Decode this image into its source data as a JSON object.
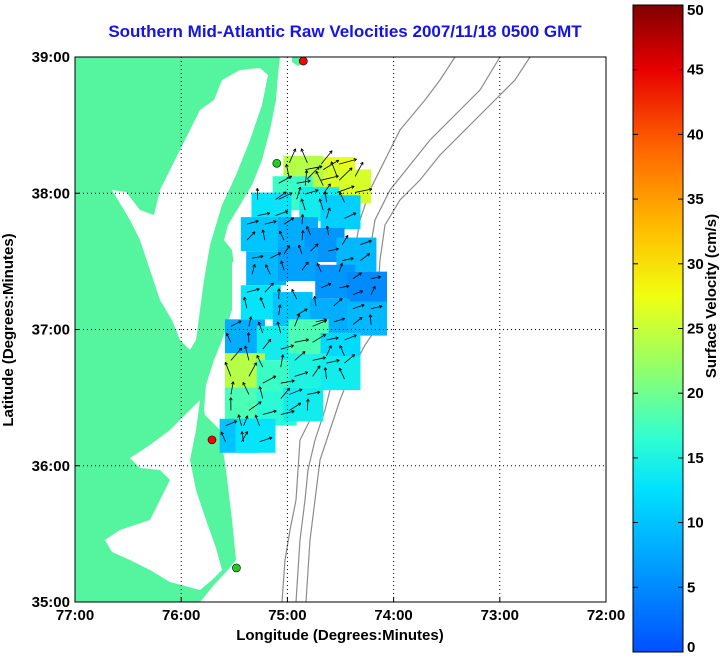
{
  "chart_data": {
    "type": "heatmap",
    "title": "Southern Mid-Atlantic Raw Velocities 2007/11/18 0500 GMT",
    "xlabel": "Longitude (Degrees:Minutes)",
    "ylabel": "Latitude (Degrees:Minutes)",
    "colorbar_label": "Surface Velocity (cm/s)",
    "xlim": [
      -77,
      -72
    ],
    "ylim": [
      35,
      39
    ],
    "x_ticks": [
      {
        "value": -77,
        "label": "77:00"
      },
      {
        "value": -76,
        "label": "76:00"
      },
      {
        "value": -75,
        "label": "75:00"
      },
      {
        "value": -74,
        "label": "74:00"
      },
      {
        "value": -73,
        "label": "73:00"
      },
      {
        "value": -72,
        "label": "72:00"
      }
    ],
    "y_ticks": [
      {
        "value": 35,
        "label": "35:00"
      },
      {
        "value": 36,
        "label": "36:00"
      },
      {
        "value": 37,
        "label": "37:00"
      },
      {
        "value": 38,
        "label": "38:00"
      },
      {
        "value": 39,
        "label": "39:00"
      }
    ],
    "colorbar_ticks": [
      {
        "value": 0,
        "label": "0"
      },
      {
        "value": 5,
        "label": "5"
      },
      {
        "value": 10,
        "label": "10"
      },
      {
        "value": 15,
        "label": "15"
      },
      {
        "value": 20,
        "label": "20"
      },
      {
        "value": 25,
        "label": "25"
      },
      {
        "value": 30,
        "label": "30"
      },
      {
        "value": 35,
        "label": "35"
      },
      {
        "value": 40,
        "label": "40"
      },
      {
        "value": 45,
        "label": "45"
      },
      {
        "value": 50,
        "label": "50"
      }
    ],
    "clim": [
      0,
      50
    ],
    "grid": true,
    "colormap": "jet",
    "land_color": "#55f5a0",
    "water_color": "#ffffff",
    "bathymetry_color": "#8c8c8c",
    "title_color": "#1414e6",
    "stations": [
      {
        "lon": -74.85,
        "lat": 38.97,
        "color": "#ff0000"
      },
      {
        "lon": -75.1,
        "lat": 38.22,
        "color": "#22cc22"
      },
      {
        "lon": -75.71,
        "lat": 36.19,
        "color": "#ff0000"
      },
      {
        "lon": -75.48,
        "lat": 35.25,
        "color": "#22cc22"
      }
    ],
    "velocity_field": [
      {
        "lon": -74.55,
        "lat": 38.14,
        "speed": 27
      },
      {
        "lon": -74.7,
        "lat": 38.1,
        "speed": 26
      },
      {
        "lon": -74.85,
        "lat": 38.15,
        "speed": 24
      },
      {
        "lon": -74.4,
        "lat": 38.05,
        "speed": 26
      },
      {
        "lon": -74.95,
        "lat": 38.0,
        "speed": 17
      },
      {
        "lon": -74.7,
        "lat": 37.92,
        "speed": 14
      },
      {
        "lon": -74.5,
        "lat": 37.86,
        "speed": 11
      },
      {
        "lon": -75.15,
        "lat": 37.88,
        "speed": 13
      },
      {
        "lon": -75.25,
        "lat": 37.7,
        "speed": 10
      },
      {
        "lon": -74.9,
        "lat": 37.7,
        "speed": 8
      },
      {
        "lon": -74.65,
        "lat": 37.62,
        "speed": 6
      },
      {
        "lon": -74.35,
        "lat": 37.55,
        "speed": 9
      },
      {
        "lon": -75.2,
        "lat": 37.45,
        "speed": 9
      },
      {
        "lon": -74.9,
        "lat": 37.48,
        "speed": 7
      },
      {
        "lon": -74.55,
        "lat": 37.35,
        "speed": 6
      },
      {
        "lon": -74.25,
        "lat": 37.3,
        "speed": 5
      },
      {
        "lon": -75.25,
        "lat": 37.2,
        "speed": 13
      },
      {
        "lon": -74.95,
        "lat": 37.15,
        "speed": 10
      },
      {
        "lon": -74.6,
        "lat": 37.1,
        "speed": 8
      },
      {
        "lon": -74.25,
        "lat": 37.08,
        "speed": 9
      },
      {
        "lon": -75.4,
        "lat": 36.95,
        "speed": 8
      },
      {
        "lon": -75.1,
        "lat": 36.9,
        "speed": 14
      },
      {
        "lon": -74.8,
        "lat": 36.95,
        "speed": 18
      },
      {
        "lon": -74.5,
        "lat": 36.85,
        "speed": 12
      },
      {
        "lon": -75.4,
        "lat": 36.7,
        "speed": 24
      },
      {
        "lon": -75.1,
        "lat": 36.65,
        "speed": 17
      },
      {
        "lon": -74.8,
        "lat": 36.7,
        "speed": 15
      },
      {
        "lon": -74.5,
        "lat": 36.68,
        "speed": 14
      },
      {
        "lon": -75.4,
        "lat": 36.45,
        "speed": 18
      },
      {
        "lon": -75.1,
        "lat": 36.42,
        "speed": 16
      },
      {
        "lon": -74.85,
        "lat": 36.45,
        "speed": 14
      },
      {
        "lon": -75.45,
        "lat": 36.22,
        "speed": 10
      },
      {
        "lon": -75.3,
        "lat": 36.22,
        "speed": 13
      }
    ]
  }
}
